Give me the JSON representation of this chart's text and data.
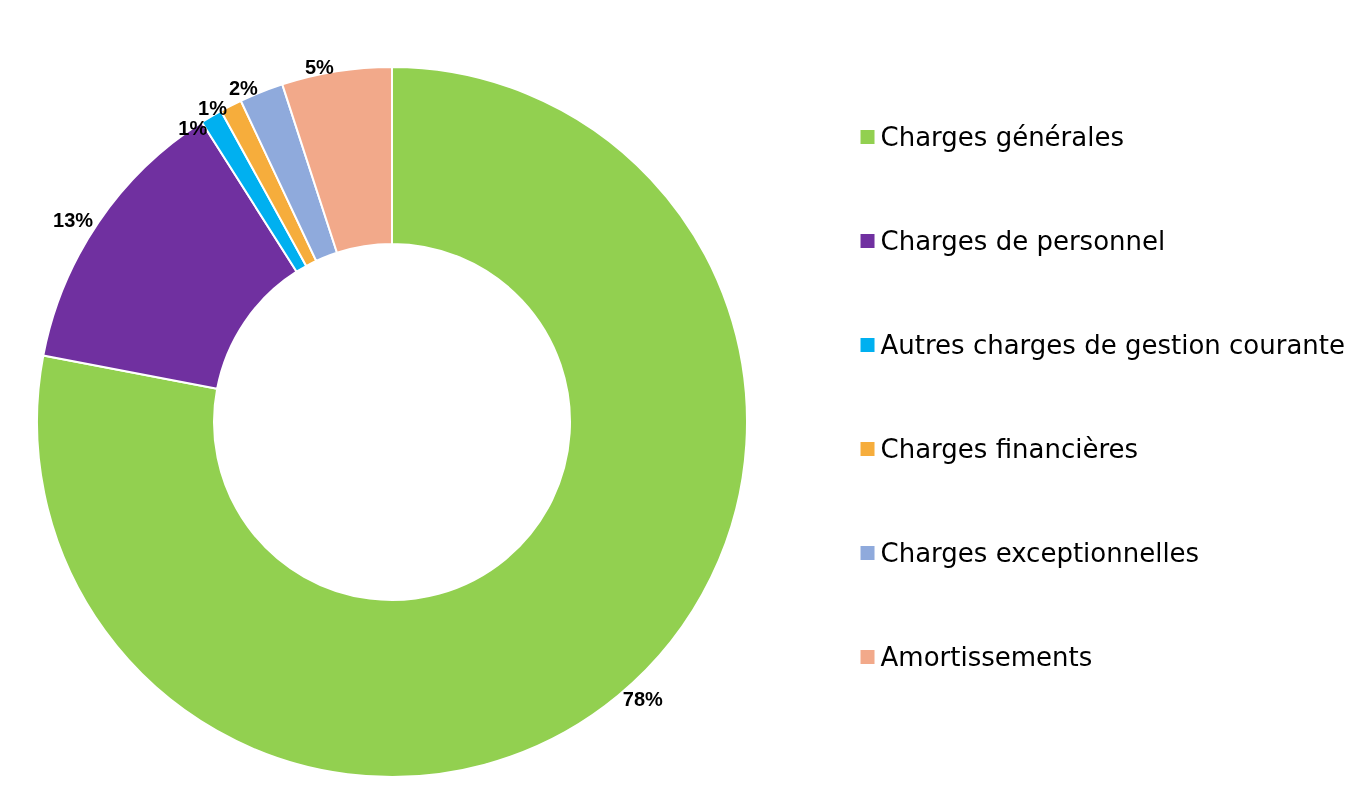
{
  "chart_data": {
    "type": "donut",
    "categories": [
      "Charges générales",
      "Charges de personnel",
      "Autres charges de gestion courante",
      "Charges financières",
      "Charges exceptionnelles",
      "Amortissements"
    ],
    "values": [
      78,
      13,
      1,
      1,
      2,
      5
    ],
    "value_labels": [
      "78%",
      "13%",
      "1%",
      "1%",
      "2%",
      "5%"
    ],
    "colors": [
      "#92d050",
      "#7030a0",
      "#00b0f0",
      "#f6ad3c",
      "#8faadc",
      "#f2a98a"
    ],
    "legend": "right"
  }
}
